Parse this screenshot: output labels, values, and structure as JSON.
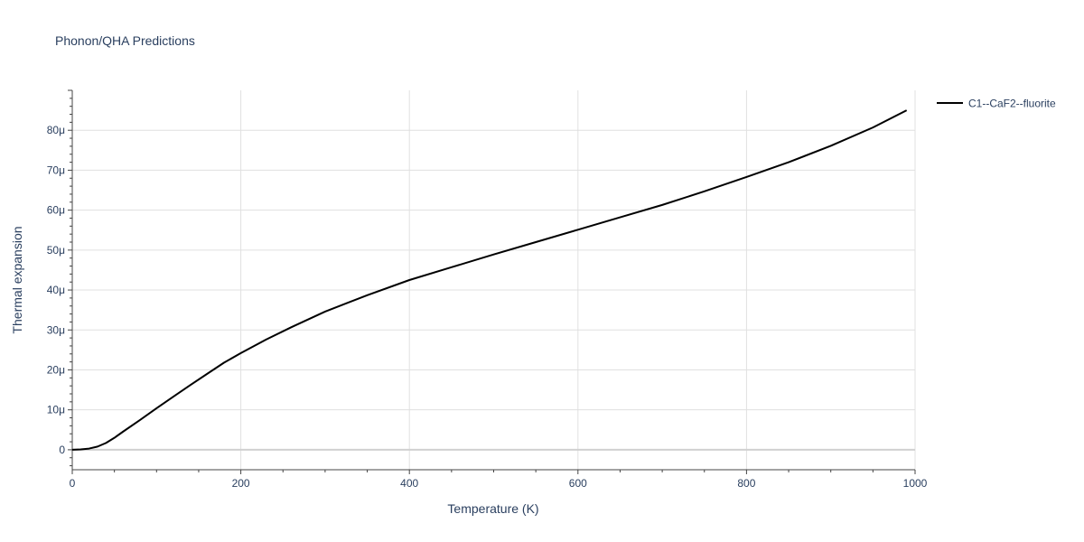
{
  "chart_data": {
    "type": "line",
    "title": "Phonon/QHA Predictions",
    "xlabel": "Temperature (K)",
    "ylabel": "Thermal expansion",
    "xlim": [
      0,
      1000
    ],
    "ylim": [
      -5e-06,
      9e-05
    ],
    "x_ticks": [
      0,
      200,
      400,
      600,
      800,
      1000
    ],
    "x_tick_labels": [
      "0",
      "200",
      "400",
      "600",
      "800",
      "1000"
    ],
    "y_ticks": [
      0,
      1e-05,
      2e-05,
      3e-05,
      4e-05,
      5e-05,
      6e-05,
      7e-05,
      8e-05
    ],
    "y_tick_labels": [
      "0",
      "10μ",
      "20μ",
      "30μ",
      "40μ",
      "50μ",
      "60μ",
      "70μ",
      "80μ"
    ],
    "grid": true,
    "legend_position": "top-right",
    "series": [
      {
        "name": "C1--CaF2--fluorite",
        "color": "#000000",
        "x": [
          0,
          10,
          20,
          30,
          40,
          50,
          60,
          80,
          100,
          120,
          140,
          160,
          180,
          200,
          230,
          260,
          300,
          350,
          400,
          450,
          500,
          550,
          600,
          650,
          700,
          750,
          800,
          850,
          900,
          950,
          990
        ],
        "y": [
          0,
          1e-07,
          3e-07,
          8e-07,
          1.7e-06,
          3e-06,
          4.5e-06,
          7.4e-06,
          1.04e-05,
          1.33e-05,
          1.62e-05,
          1.9e-05,
          2.18e-05,
          2.42e-05,
          2.76e-05,
          3.07e-05,
          3.46e-05,
          3.87e-05,
          4.25e-05,
          4.57e-05,
          4.89e-05,
          5.2e-05,
          5.51e-05,
          5.82e-05,
          6.13e-05,
          6.47e-05,
          6.83e-05,
          7.2e-05,
          7.61e-05,
          8.07e-05,
          8.5e-05
        ]
      }
    ]
  }
}
